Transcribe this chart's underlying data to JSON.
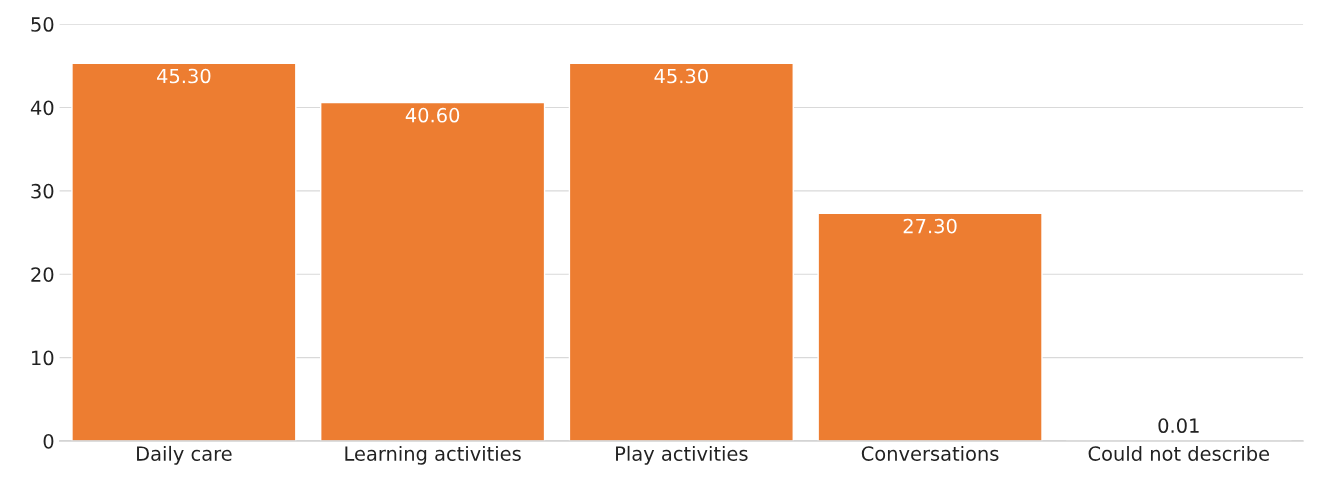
{
  "chart_data": {
    "type": "bar",
    "categories": [
      "Daily care",
      "Learning activities",
      "Play activities",
      "Conversations",
      "Could not describe"
    ],
    "values": [
      45.3,
      40.6,
      45.3,
      27.3,
      0.01
    ],
    "value_labels": [
      "45.30",
      "40.60",
      "45.30",
      "27.30",
      "0.01"
    ],
    "color": "#ed7d31",
    "ylim": [
      0,
      50
    ],
    "yticks": [
      0,
      10,
      20,
      30,
      40,
      50
    ],
    "grid": "y",
    "legend": false
  }
}
